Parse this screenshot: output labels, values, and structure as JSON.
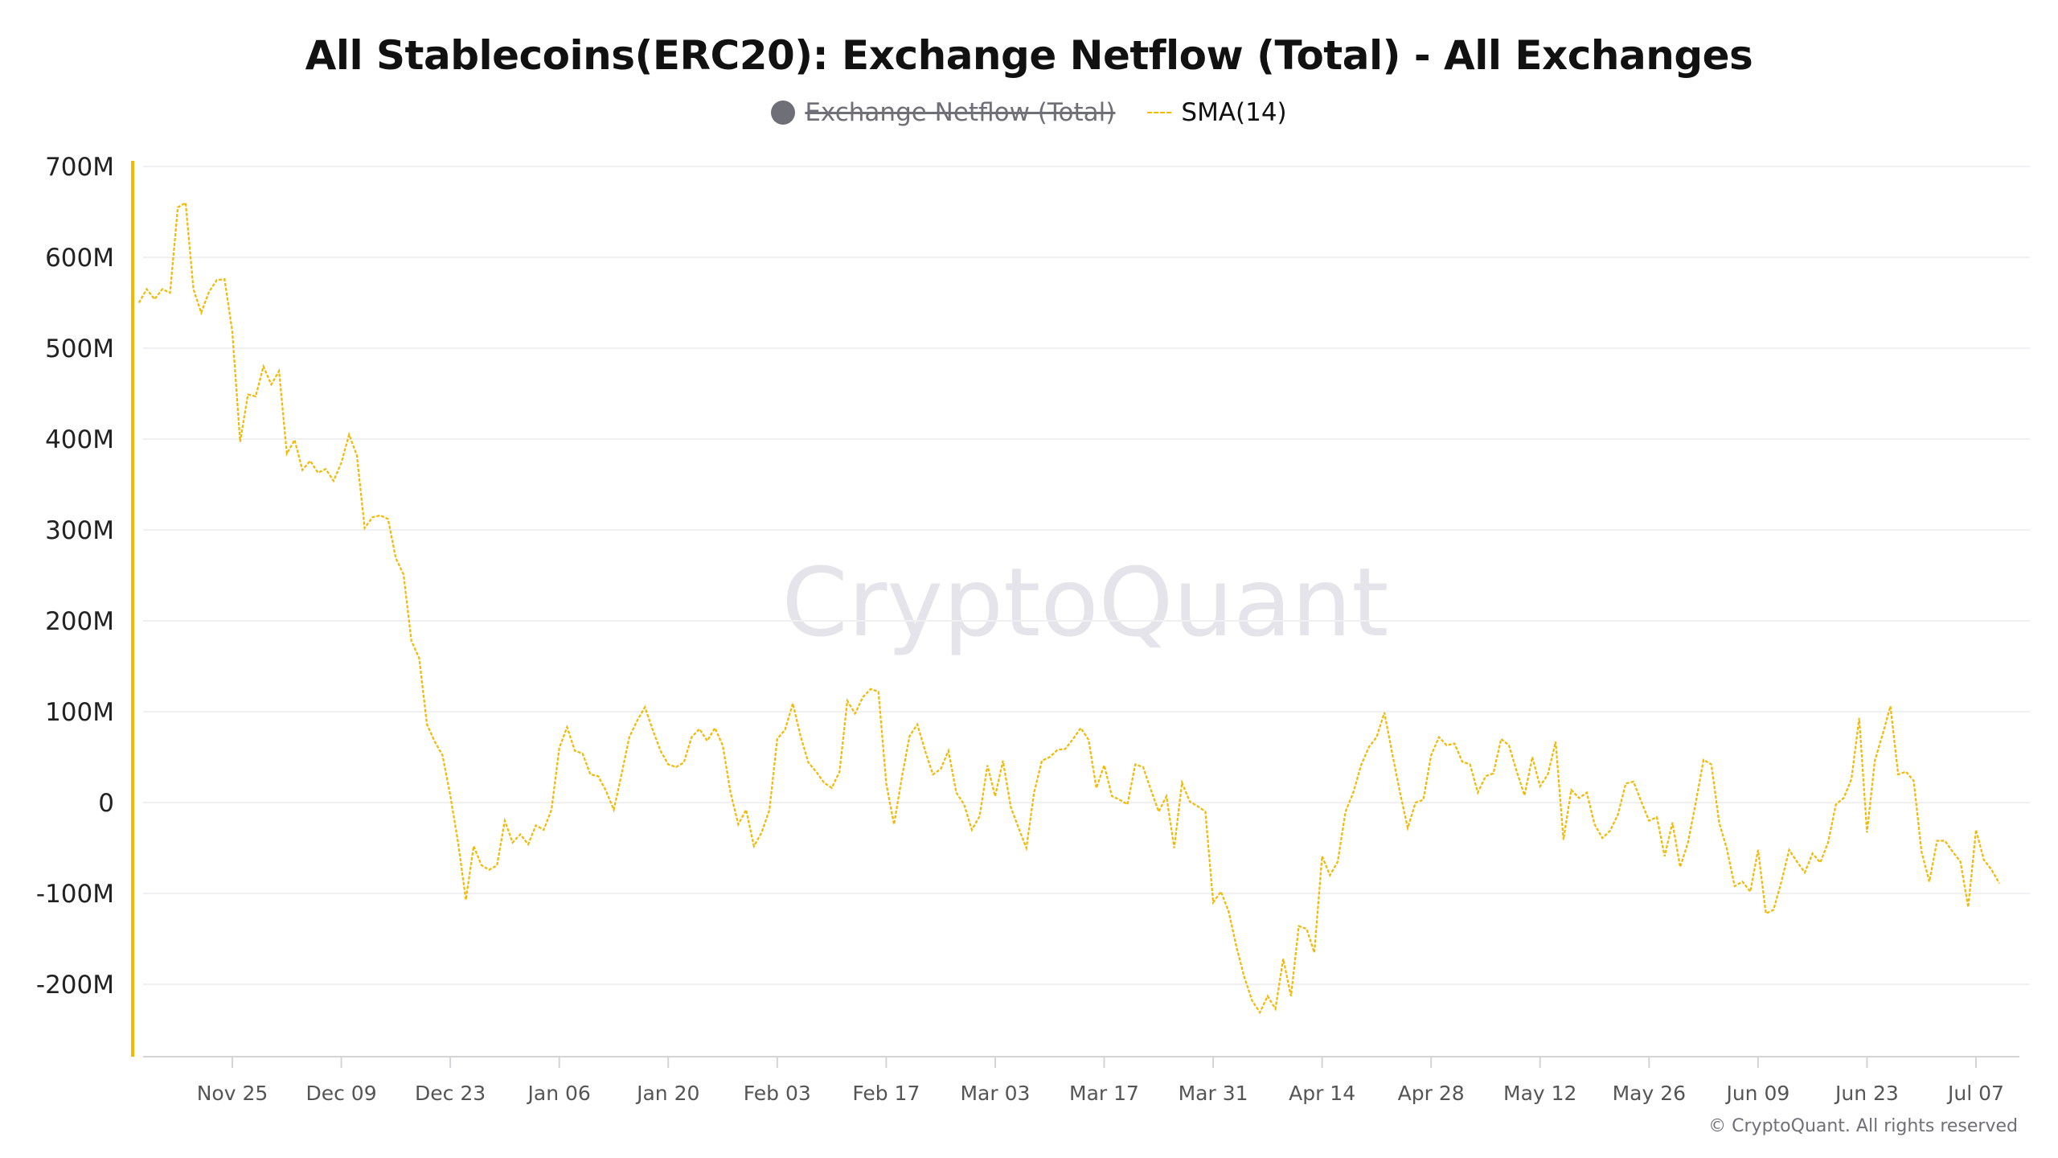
{
  "chart_data": {
    "type": "line",
    "title": "All Stablecoins(ERC20): Exchange Netflow (Total) - All Exchanges",
    "legend": [
      {
        "name": "Exchange Netflow (Total)",
        "hidden": true,
        "color": "#6f6f77"
      },
      {
        "name": "SMA(14)",
        "hidden": false,
        "color": "#f5b800",
        "style": "dashed"
      }
    ],
    "legend_placement": "top-center",
    "ylim": [
      -270,
      700
    ],
    "y_unit": "M",
    "y_ticks": [
      {
        "value": 700,
        "label": "700M"
      },
      {
        "value": 600,
        "label": "600M"
      },
      {
        "value": 500,
        "label": "500M"
      },
      {
        "value": 400,
        "label": "400M"
      },
      {
        "value": 300,
        "label": "300M"
      },
      {
        "value": 200,
        "label": "200M"
      },
      {
        "value": 100,
        "label": "100M"
      },
      {
        "value": 0,
        "label": "0"
      },
      {
        "value": -100,
        "label": "-100M"
      },
      {
        "value": -200,
        "label": "-200M"
      }
    ],
    "x_ticks": [
      "Nov 25",
      "Dec 09",
      "Dec 23",
      "Jan 06",
      "Jan 20",
      "Feb 03",
      "Feb 17",
      "Mar 03",
      "Mar 17",
      "Mar 31",
      "Apr 14",
      "Apr 28",
      "May 12",
      "May 26",
      "Jun 09",
      "Jun 23",
      "Jul 07"
    ],
    "grid": true,
    "watermark": "CryptoQuant",
    "series": [
      {
        "name": "SMA(14)",
        "months": [
          {
            "month": "Nov",
            "first_day": 13,
            "values": [
              550,
              565,
              554,
              565,
              561,
              655,
              660,
              565,
              539,
              562,
              575,
              576,
              518,
              397,
              449,
              447,
              480,
              460
            ]
          },
          {
            "month": "Dec",
            "first_day": 1,
            "values": [
              475,
              384,
              399,
              366,
              376,
              363,
              367,
              354,
              374,
              405,
              382,
              302,
              314,
              316,
              312,
              269,
              251,
              178,
              159,
              86,
              67,
              52,
              8,
              -44,
              -107,
              -48,
              -69,
              -74,
              -69,
              -20,
              -44
            ]
          },
          {
            "month": "Jan",
            "first_day": 1,
            "values": [
              -35,
              -46,
              -25,
              -30,
              -8,
              60,
              83,
              57,
              54,
              31,
              29,
              13,
              -8,
              31,
              72,
              90,
              105,
              80,
              57,
              42,
              39,
              44,
              72,
              81,
              68,
              82,
              63,
              11,
              -24,
              -8,
              -48
            ]
          },
          {
            "month": "Feb",
            "first_day": 1,
            "values": [
              -33,
              -8,
              70,
              80,
              109,
              73,
              44,
              34,
              22,
              16,
              34,
              112,
              98,
              116,
              125,
              122,
              21,
              -24,
              27,
              73,
              86,
              57,
              31,
              37,
              57,
              11,
              -2,
              -30
            ]
          },
          {
            "month": "Mar",
            "first_day": 1,
            "values": [
              -15,
              41,
              7,
              46,
              -5,
              -28,
              -50,
              11,
              46,
              50,
              58,
              59,
              70,
              82,
              69,
              16,
              41,
              7,
              3,
              -2,
              42,
              39,
              14,
              -10,
              7,
              -50,
              22,
              1,
              -4,
              -10,
              -110
            ]
          },
          {
            "month": "Apr",
            "first_day": 1,
            "values": [
              -98,
              -120,
              -159,
              -192,
              -218,
              -231,
              -213,
              -227,
              -172,
              -213,
              -136,
              -139,
              -165,
              -59,
              -80,
              -65,
              -10,
              11,
              41,
              61,
              72,
              99,
              54,
              11,
              -28,
              0,
              3,
              52,
              72,
              63
            ]
          },
          {
            "month": "May",
            "first_day": 1,
            "values": [
              65,
              45,
              42,
              11,
              29,
              32,
              70,
              63,
              34,
              8,
              50,
              18,
              31,
              67,
              -41,
              14,
              5,
              11,
              -24,
              -39,
              -31,
              -13,
              21,
              23,
              1,
              -20,
              -16,
              -59,
              -22,
              -71,
              -44
            ]
          },
          {
            "month": "Jun",
            "first_day": 1,
            "values": [
              0,
              47,
              42,
              -22,
              -51,
              -92,
              -87,
              -98,
              -52,
              -122,
              -118,
              -87,
              -52,
              -65,
              -77,
              -56,
              -66,
              -44,
              -2,
              5,
              26,
              93,
              -33,
              46,
              75,
              106,
              31,
              34,
              24,
              -54
            ]
          },
          {
            "month": "Jul",
            "first_day": 1,
            "values": [
              -87,
              -42,
              -42,
              -54,
              -65,
              -115,
              -30,
              -63,
              -74,
              -89
            ]
          }
        ]
      }
    ]
  },
  "footer": "© CryptoQuant. All rights reserved",
  "colors": {
    "accent": "#f5b800",
    "axis": "#f5b800",
    "grid": "#f0f0f2",
    "muted": "#6f6f77"
  }
}
